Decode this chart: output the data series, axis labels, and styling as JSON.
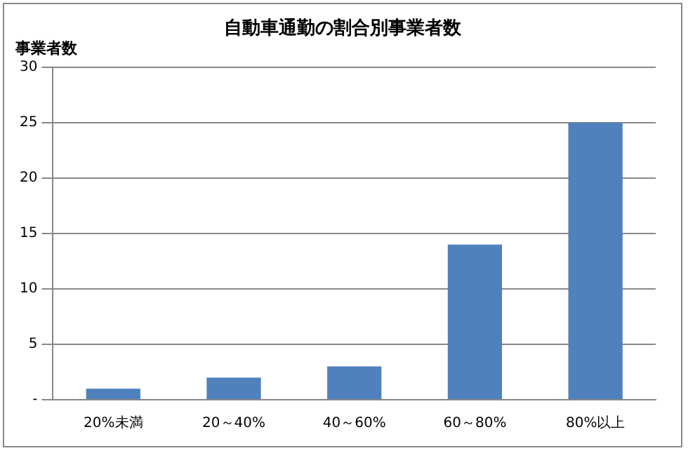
{
  "chart_data": {
    "type": "bar",
    "title": "自動車通勤の割合別事業者数",
    "ylabel": "事業者数",
    "categories": [
      "20%未満",
      "20～40%",
      "40～60%",
      "60～80%",
      "80%以上"
    ],
    "values": [
      1,
      2,
      3,
      14,
      25
    ],
    "color": "#4f81bd",
    "ylim": [
      0,
      30
    ],
    "yticks": [
      {
        "value": 0,
        "label": "-"
      },
      5,
      10,
      15,
      20,
      25,
      30
    ],
    "grid": "y",
    "legend": false
  }
}
